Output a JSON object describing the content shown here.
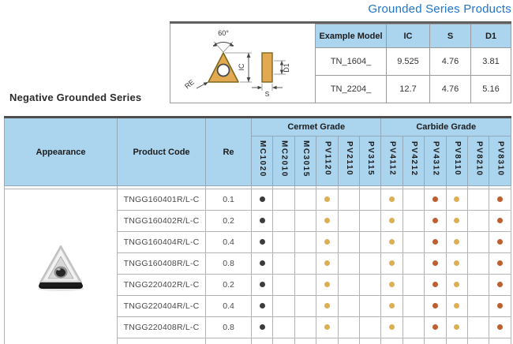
{
  "title": "Grounded Series Products",
  "section_heading": "Negative Grounded Series",
  "colors": {
    "accent_blue": "#1e76cb",
    "header_bg": "#abd4ef",
    "diagram_fill": "#e2a951",
    "dot_black": "#3c3c3c",
    "dot_gold": "#ddae52",
    "dot_rust": "#bd5f31"
  },
  "diagram": {
    "labels": {
      "angle": "60°",
      "ic": "IC",
      "re": "RE",
      "d1": "D1",
      "s": "S"
    }
  },
  "example_table": {
    "headers": {
      "model": "Example Model",
      "ic": "IC",
      "s": "S",
      "d1": "D1"
    },
    "rows": [
      {
        "model": "TN_1604_",
        "ic": "9.525",
        "s": "4.76",
        "d1": "3.81"
      },
      {
        "model": "TN_2204_",
        "ic": "12.7",
        "s": "4.76",
        "d1": "5.16"
      }
    ]
  },
  "main_table": {
    "appearance_header": "Appearance",
    "product_code_header": "Product Code",
    "re_header": "Re",
    "groups": [
      {
        "label": "Cermet Grade",
        "span": 6
      },
      {
        "label": "Carbide Grade",
        "span": 6
      }
    ],
    "grade_codes": [
      "MC1020",
      "MC2010",
      "MC3015",
      "PV1120",
      "PV2110",
      "PV3115",
      "PV4112",
      "PV4212",
      "PV4312",
      "PV8110",
      "PV8210",
      "PV8310"
    ],
    "rows": [
      {
        "code": "TNGG160401R/L-C",
        "re": "0.1",
        "dots": [
          "black",
          null,
          null,
          "gold",
          null,
          null,
          "gold",
          null,
          "rust",
          "gold",
          null,
          "rust"
        ]
      },
      {
        "code": "TNGG160402R/L-C",
        "re": "0.2",
        "dots": [
          "black",
          null,
          null,
          "gold",
          null,
          null,
          "gold",
          null,
          "rust",
          "gold",
          null,
          "rust"
        ]
      },
      {
        "code": "TNGG160404R/L-C",
        "re": "0.4",
        "dots": [
          "black",
          null,
          null,
          "gold",
          null,
          null,
          "gold",
          null,
          "rust",
          "gold",
          null,
          "rust"
        ]
      },
      {
        "code": "TNGG160408R/L-C",
        "re": "0.8",
        "dots": [
          "black",
          null,
          null,
          "gold",
          null,
          null,
          "gold",
          null,
          "rust",
          "gold",
          null,
          "rust"
        ]
      },
      {
        "code": "TNGG220402R/L-C",
        "re": "0.2",
        "dots": [
          "black",
          null,
          null,
          "gold",
          null,
          null,
          "gold",
          null,
          "rust",
          "gold",
          null,
          "rust"
        ]
      },
      {
        "code": "TNGG220404R/L-C",
        "re": "0.4",
        "dots": [
          "black",
          null,
          null,
          "gold",
          null,
          null,
          "gold",
          null,
          "rust",
          "gold",
          null,
          "rust"
        ]
      },
      {
        "code": "TNGG220408R/L-C",
        "re": "0.8",
        "dots": [
          "black",
          null,
          null,
          "gold",
          null,
          null,
          "gold",
          null,
          "rust",
          "gold",
          null,
          "rust"
        ]
      }
    ]
  }
}
